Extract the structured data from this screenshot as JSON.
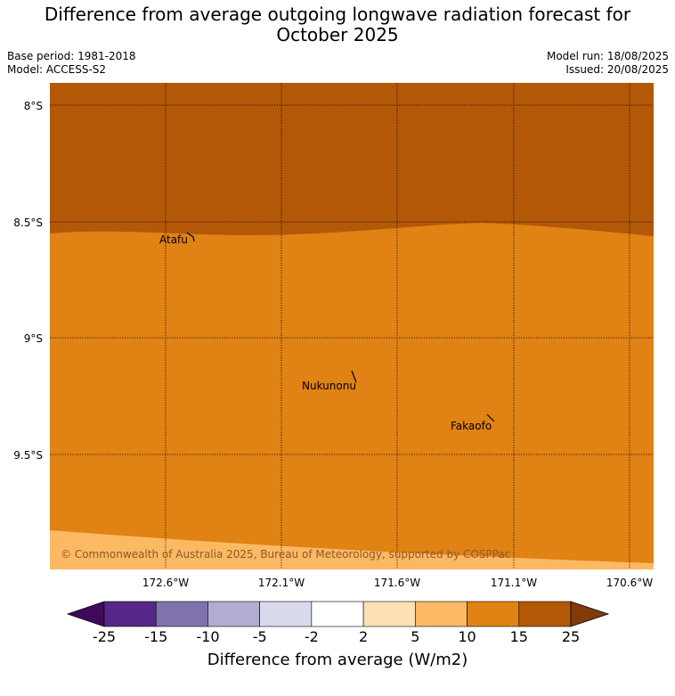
{
  "title_line1": "Difference from average outgoing longwave radiation forecast for",
  "title_line2": "October 2025",
  "base_period": "Base period: 1981-2018",
  "model": "Model: ACCESS-S2",
  "model_run": "Model run: 18/08/2025",
  "issued": "Issued: 20/08/2025",
  "latitude_labels": [
    "8°S",
    "8.5°S",
    "9°S",
    "9.5°S"
  ],
  "longitude_labels": [
    "172.6°W",
    "172.1°W",
    "171.6°W",
    "171.1°W",
    "170.6°W"
  ],
  "places": [
    "Atafu",
    "Nukunonu",
    "Fakaofo"
  ],
  "copyright": "© Commonwealth of Australia 2025, Bureau of Meteorology, supported by COSPPac",
  "colorbar": {
    "title": "Difference from average (W/m2)",
    "ticks": [
      "-25",
      "-15",
      "-10",
      "-5",
      "-2",
      "2",
      "5",
      "10",
      "15",
      "25"
    ],
    "colors": {
      "under": "#3f0a5c",
      "bins": [
        "#542788",
        "#8073ac",
        "#b2abd2",
        "#d8daeb",
        "#ffffff",
        "#fee0b6",
        "#fdb863",
        "#e08214",
        "#b35806"
      ],
      "over": "#7f3b08"
    }
  },
  "map_colors": {
    "band_15_25": "#b35806",
    "band_10_15": "#e08214",
    "band_5_10": "#fdb863"
  }
}
